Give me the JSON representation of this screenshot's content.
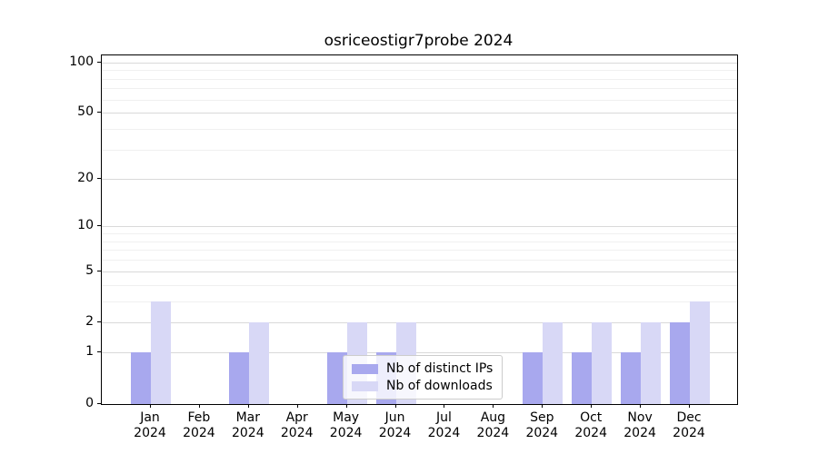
{
  "chart_data": {
    "type": "bar",
    "title": "osriceostigr7probe 2024",
    "x_categories": [
      "Jan",
      "Feb",
      "Mar",
      "Apr",
      "May",
      "Jun",
      "Jul",
      "Aug",
      "Sep",
      "Oct",
      "Nov",
      "Dec"
    ],
    "x_year_label": "2024",
    "series": [
      {
        "name": "Nb of distinct IPs",
        "color": "#a8a8ee",
        "values": [
          1,
          0,
          1,
          0,
          1,
          1,
          0,
          0,
          1,
          1,
          1,
          2
        ]
      },
      {
        "name": "Nb of downloads",
        "color": "#d8d8f6",
        "values": [
          3,
          0,
          2,
          0,
          2,
          2,
          0,
          0,
          2,
          2,
          2,
          3
        ]
      }
    ],
    "y_scale": "log1p",
    "ylim": [
      0,
      110
    ],
    "y_major_ticks": [
      0,
      1,
      2,
      5,
      10,
      20,
      50,
      100
    ],
    "y_minor_gridlines": [
      3,
      4,
      6,
      7,
      8,
      9,
      30,
      40,
      60,
      70,
      80,
      90
    ],
    "grid": true,
    "legend_position": "lower center"
  },
  "colors": {
    "major_grid": "#d9d9d9",
    "minor_grid": "#f0f0f0",
    "spine": "#000000",
    "text": "#000000"
  }
}
